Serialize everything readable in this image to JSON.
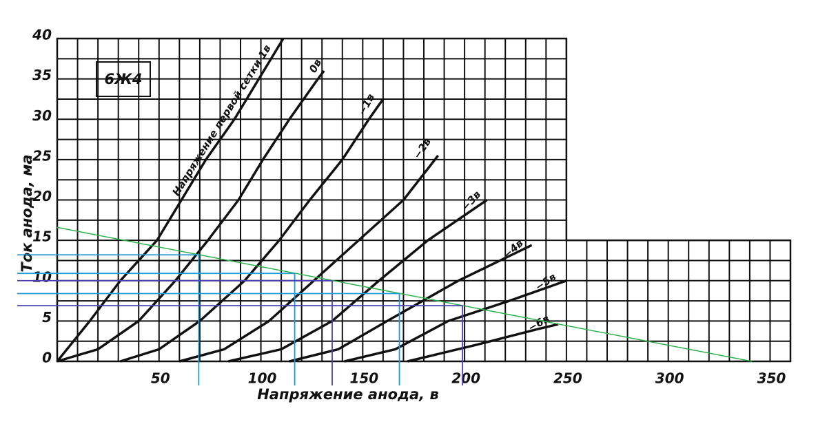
{
  "chart_data": {
    "type": "line",
    "inset_label": "6Ж4",
    "x_label": "Напряжение анода, в",
    "y_label": "Ток анода, ма",
    "xlim": [
      0,
      360
    ],
    "ylim": [
      0,
      40
    ],
    "xticks": [
      50,
      100,
      150,
      200,
      250,
      300,
      350
    ],
    "yticks": [
      0,
      5,
      10,
      15,
      20,
      25,
      30,
      35,
      40
    ],
    "xgrid": [
      0,
      10,
      20,
      30,
      40,
      50,
      60,
      70,
      80,
      90,
      100,
      110,
      120,
      130,
      140,
      150,
      160,
      170,
      180,
      190,
      200,
      210,
      220,
      230,
      240,
      250,
      260,
      270,
      280,
      290,
      300,
      310,
      320,
      330,
      340,
      350,
      360
    ],
    "ygrid": [
      0,
      2.5,
      5,
      7.5,
      10,
      12.5,
      15,
      17.5,
      20,
      22.5,
      25,
      27.5,
      30,
      32.5,
      35,
      37.5,
      40
    ],
    "grid_outline": [
      [
        0,
        0
      ],
      [
        360,
        0
      ],
      [
        360,
        15
      ],
      [
        250,
        15
      ],
      [
        250,
        40
      ],
      [
        0,
        40
      ]
    ],
    "series": [
      {
        "name": "Напряжение первой сетки 1в",
        "color": "#111111",
        "x": [
          0,
          16,
          31,
          49,
          61,
          73,
          87,
          99,
          111
        ],
        "values": [
          0,
          5,
          10,
          15,
          20,
          25,
          30,
          35,
          40
        ]
      },
      {
        "name": "0в",
        "color": "#111111",
        "x": [
          0,
          20,
          40,
          58,
          74,
          89,
          101,
          114,
          128,
          131
        ],
        "values": [
          0,
          1.5,
          5,
          10,
          15,
          20,
          25,
          30,
          35,
          36
        ]
      },
      {
        "name": "−1в",
        "color": "#111111",
        "x": [
          31,
          50,
          70,
          92,
          109,
          124,
          140,
          153,
          160
        ],
        "values": [
          0,
          1.5,
          5,
          10,
          15,
          20,
          25,
          30,
          32.5
        ]
      },
      {
        "name": "−2в",
        "color": "#111111",
        "x": [
          60,
          82,
          104,
          126,
          148,
          170,
          187
        ],
        "values": [
          0,
          1.5,
          5,
          10,
          15,
          20,
          25.5
        ]
      },
      {
        "name": "−3в",
        "color": "#111111",
        "x": [
          84,
          110,
          135,
          158,
          182,
          211
        ],
        "values": [
          0,
          1.5,
          5,
          10,
          15,
          20
        ]
      },
      {
        "name": "−4в",
        "color": "#111111",
        "x": [
          114,
          138,
          162,
          197,
          233
        ],
        "values": [
          0,
          1.5,
          5,
          10,
          14.4
        ]
      },
      {
        "name": "−5в",
        "color": "#111111",
        "x": [
          141,
          166,
          192,
          222,
          250
        ],
        "values": [
          0,
          1.5,
          5,
          7.5,
          10
        ]
      },
      {
        "name": "−6в",
        "color": "#111111",
        "x": [
          172,
          205,
          236,
          246
        ],
        "values": [
          0,
          2,
          4,
          4.6
        ]
      }
    ],
    "load_line": {
      "color": "#2db34a",
      "x": [
        0,
        341
      ],
      "values": [
        16.6,
        0
      ]
    },
    "projections": {
      "x": [
        69.5,
        116.6,
        135,
        168,
        199
      ],
      "values": [
        13.2,
        10.9,
        10.0,
        8.4,
        6.9
      ],
      "colors": [
        "#1e9ad6",
        "#1e9ad6",
        "#4a3fb5",
        "#1e9ad6",
        "#4a3fb5"
      ]
    }
  }
}
